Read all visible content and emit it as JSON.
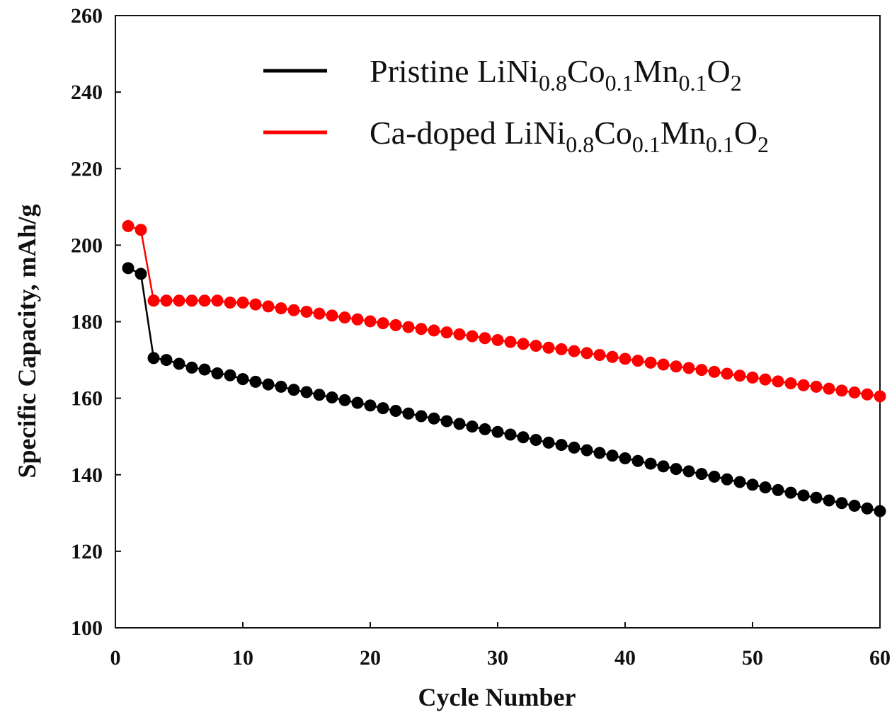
{
  "chart_data": {
    "type": "line",
    "title": "",
    "xlabel": "Cycle Number",
    "ylabel": "Specific Capacity, mAh/g",
    "xlim": [
      0,
      60
    ],
    "ylim": [
      100,
      260
    ],
    "xticks": [
      0,
      10,
      20,
      30,
      40,
      50,
      60
    ],
    "yticks": [
      100,
      120,
      140,
      160,
      180,
      200,
      220,
      240,
      260
    ],
    "grid": false,
    "legend_position": "top-right",
    "series": [
      {
        "name": "Pristine LiNi0.8Co0.1Mn0.1O2",
        "label_parts": [
          {
            "t": "Pristine LiNi"
          },
          {
            "t": "0.8",
            "sub": true
          },
          {
            "t": "Co"
          },
          {
            "t": "0.1",
            "sub": true
          },
          {
            "t": "Mn"
          },
          {
            "t": "0.1",
            "sub": true
          },
          {
            "t": "O"
          },
          {
            "t": "2",
            "sub": true
          }
        ],
        "color": "#000000",
        "values": [
          194,
          192.5,
          170.5,
          170,
          169,
          168,
          167.5,
          166.5,
          166,
          165,
          164.3,
          163.6,
          163.0,
          162.2,
          161.6,
          160.9,
          160.2,
          159.5,
          158.8,
          158.1,
          157.4,
          156.7,
          156.0,
          155.3,
          154.7,
          154.0,
          153.3,
          152.6,
          151.9,
          151.2,
          150.5,
          149.8,
          149.1,
          148.4,
          147.8,
          147.1,
          146.4,
          145.7,
          145.0,
          144.3,
          143.6,
          142.9,
          142.2,
          141.5,
          140.9,
          140.2,
          139.5,
          138.8,
          138.1,
          137.4,
          136.7,
          136.0,
          135.3,
          134.6,
          134.0,
          133.3,
          132.6,
          131.9,
          131.2,
          130.5
        ]
      },
      {
        "name": "Ca-doped LiNi0.8Co0.1Mn0.1O2",
        "label_parts": [
          {
            "t": "Ca-doped LiNi"
          },
          {
            "t": "0.8",
            "sub": true
          },
          {
            "t": "Co"
          },
          {
            "t": "0.1",
            "sub": true
          },
          {
            "t": "Mn"
          },
          {
            "t": "0.1",
            "sub": true
          },
          {
            "t": "O"
          },
          {
            "t": "2",
            "sub": true
          }
        ],
        "color": "#ff0000",
        "values": [
          205,
          204,
          185.5,
          185.5,
          185.5,
          185.5,
          185.5,
          185.5,
          185,
          185,
          184.5,
          184.0,
          183.5,
          183.0,
          182.6,
          182.1,
          181.6,
          181.1,
          180.6,
          180.1,
          179.6,
          179.1,
          178.6,
          178.1,
          177.7,
          177.2,
          176.7,
          176.2,
          175.7,
          175.2,
          174.7,
          174.2,
          173.7,
          173.2,
          172.8,
          172.3,
          171.8,
          171.3,
          170.8,
          170.3,
          169.8,
          169.3,
          168.8,
          168.3,
          167.9,
          167.4,
          166.9,
          166.4,
          165.9,
          165.4,
          164.9,
          164.4,
          163.9,
          163.4,
          163.0,
          162.5,
          162.0,
          161.5,
          161.0,
          160.5
        ]
      }
    ]
  }
}
